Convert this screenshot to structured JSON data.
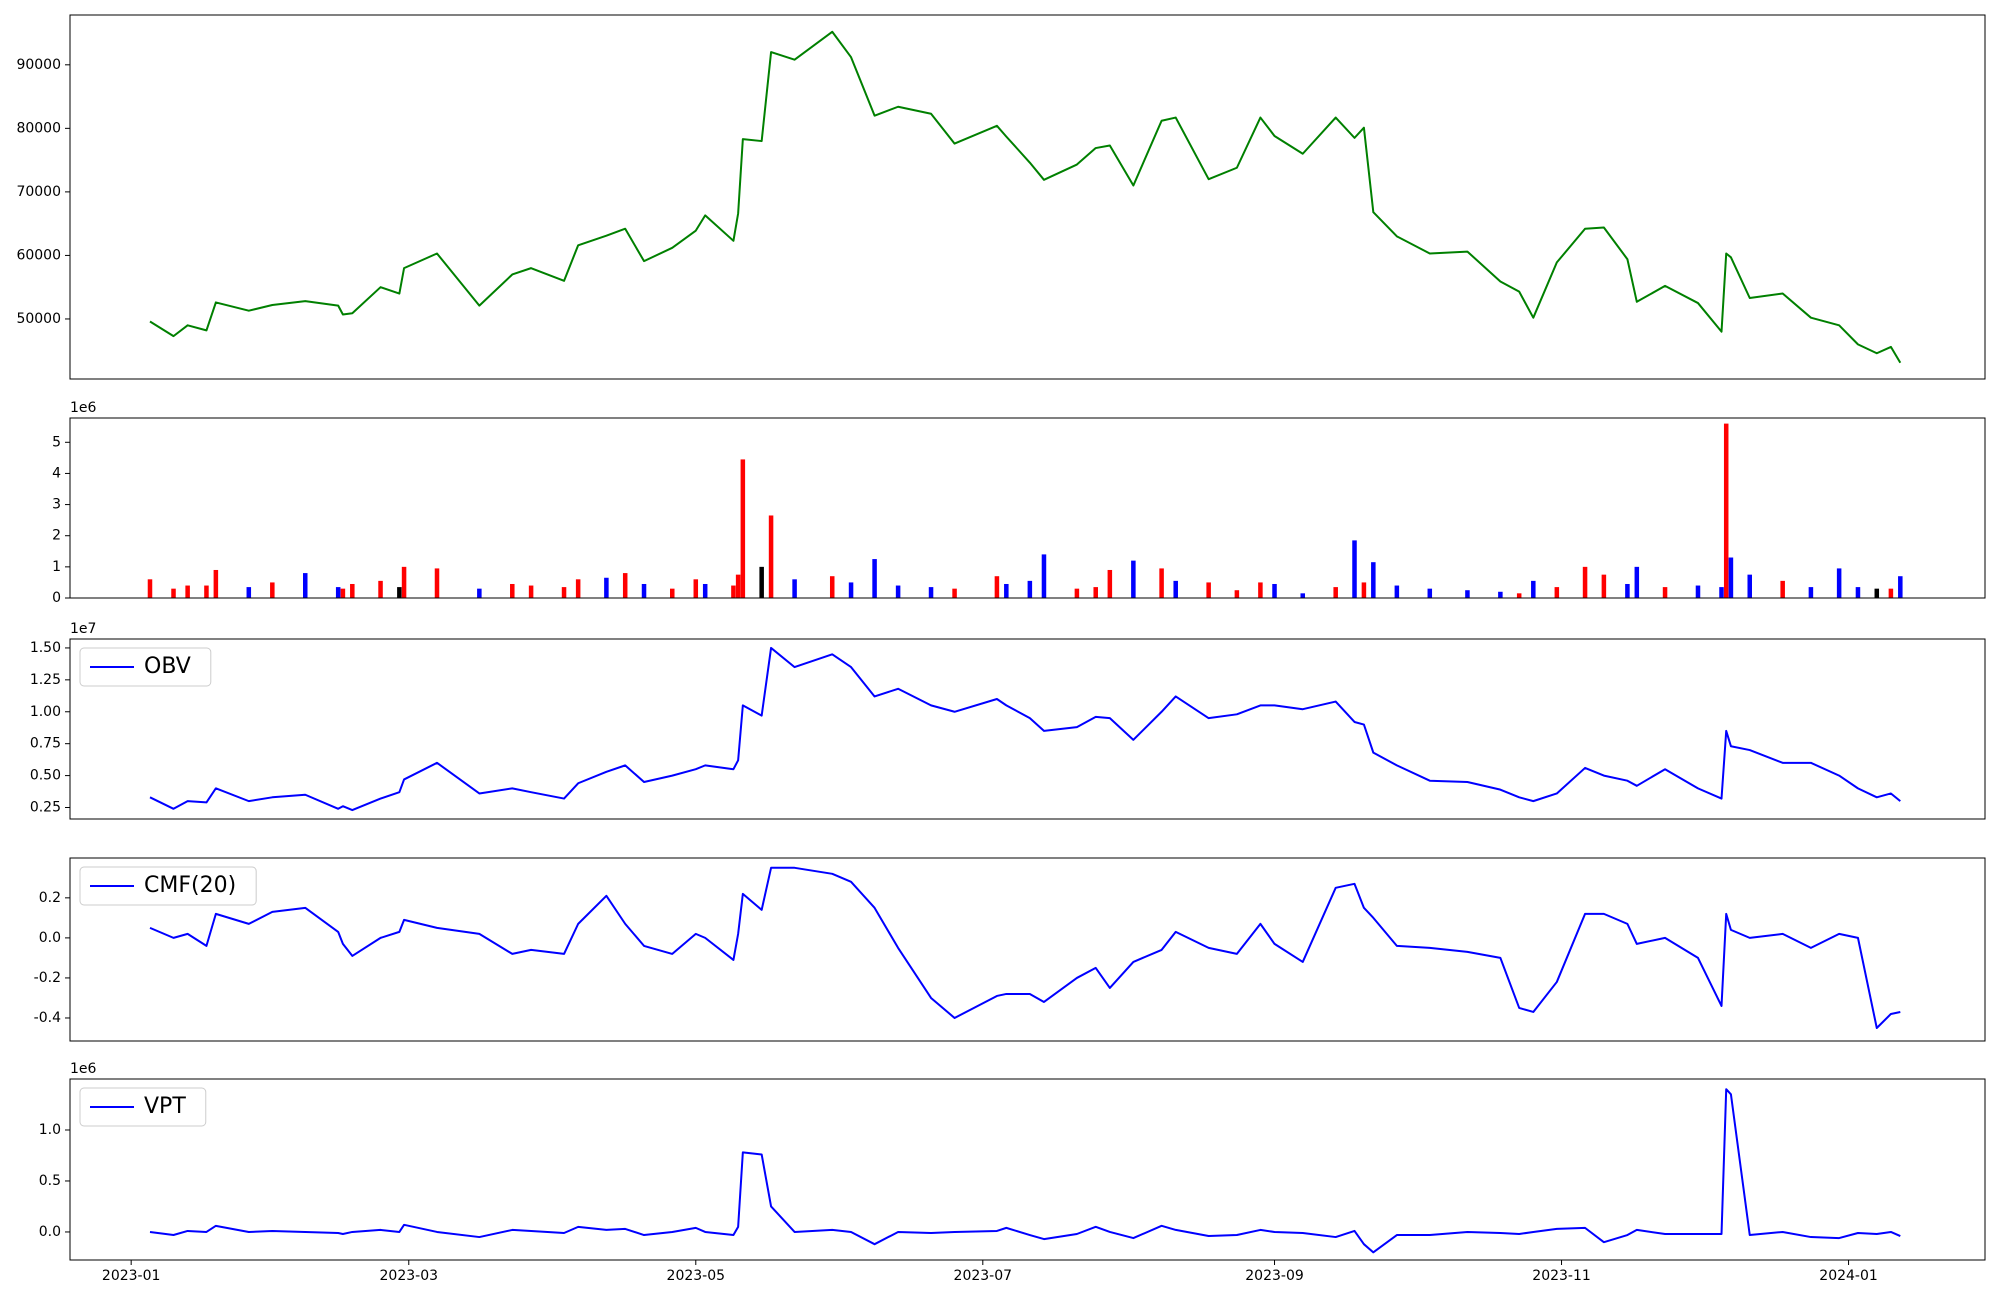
{
  "chart_data": [
    {
      "type": "line",
      "x": [
        "2023-01-05",
        "2023-01-10",
        "2023-01-13",
        "2023-01-17",
        "2023-01-19",
        "2023-01-26",
        "2023-01-31",
        "2023-02-07",
        "2023-02-14",
        "2023-02-15",
        "2023-02-17",
        "2023-02-23",
        "2023-02-27",
        "2023-02-28",
        "2023-03-07",
        "2023-03-16",
        "2023-03-23",
        "2023-03-27",
        "2023-04-03",
        "2023-04-06",
        "2023-04-12",
        "2023-04-16",
        "2023-04-20",
        "2023-04-26",
        "2023-05-01",
        "2023-05-03",
        "2023-05-09",
        "2023-05-10",
        "2023-05-11",
        "2023-05-15",
        "2023-05-17",
        "2023-05-22",
        "2023-05-30",
        "2023-06-03",
        "2023-06-08",
        "2023-06-13",
        "2023-06-20",
        "2023-06-25",
        "2023-07-04",
        "2023-07-06",
        "2023-07-11",
        "2023-07-14",
        "2023-07-21",
        "2023-07-25",
        "2023-07-28",
        "2023-08-02",
        "2023-08-08",
        "2023-08-11",
        "2023-08-18",
        "2023-08-24",
        "2023-08-29",
        "2023-09-01",
        "2023-09-07",
        "2023-09-14",
        "2023-09-18",
        "2023-09-20",
        "2023-09-22",
        "2023-09-27",
        "2023-10-04",
        "2023-10-12",
        "2023-10-19",
        "2023-10-23",
        "2023-10-26",
        "2023-10-31",
        "2023-11-06",
        "2023-11-10",
        "2023-11-15",
        "2023-11-17",
        "2023-11-23",
        "2023-11-30",
        "2023-12-05",
        "2023-12-06",
        "2023-12-07",
        "2023-12-11",
        "2023-12-18",
        "2023-12-24",
        "2023-12-30",
        "2024-01-03",
        "2024-01-07",
        "2024-01-10",
        "2024-01-12"
      ],
      "series": [
        {
          "color": "#008000",
          "values": [
            49600,
            47300,
            49000,
            48200,
            52600,
            51300,
            52200,
            52800,
            52100,
            50700,
            50900,
            55000,
            54000,
            58000,
            60300,
            52100,
            57000,
            58000,
            56000,
            61600,
            63100,
            64200,
            59100,
            61200,
            63900,
            66300,
            62300,
            66600,
            78300,
            78000,
            92000,
            90800,
            95200,
            91200,
            82000,
            83400,
            82300,
            77600,
            80400,
            78700,
            74600,
            71900,
            74300,
            76900,
            77300,
            71000,
            81200,
            81700,
            72000,
            73800,
            81700,
            78800,
            76000,
            81700,
            78500,
            80100,
            66800,
            63000,
            60300,
            60600,
            55900,
            54300,
            50200,
            58900,
            64200,
            64400,
            59400,
            52700,
            55200,
            52500,
            48000,
            60300,
            59700,
            53300,
            54000,
            50200,
            49000,
            46000,
            44600,
            45600,
            43100
          ]
        }
      ],
      "xlim": [
        "2022-12-19",
        "2024-01-30"
      ],
      "ylim": [
        40550,
        97840
      ],
      "yticks": [
        50000,
        60000,
        70000,
        80000,
        90000
      ]
    },
    {
      "type": "bar",
      "x": [
        "2023-01-05",
        "2023-01-10",
        "2023-01-13",
        "2023-01-17",
        "2023-01-19",
        "2023-01-26",
        "2023-01-31",
        "2023-02-07",
        "2023-02-14",
        "2023-02-15",
        "2023-02-17",
        "2023-02-23",
        "2023-02-27",
        "2023-02-28",
        "2023-03-07",
        "2023-03-16",
        "2023-03-23",
        "2023-03-27",
        "2023-04-03",
        "2023-04-06",
        "2023-04-12",
        "2023-04-16",
        "2023-04-20",
        "2023-04-26",
        "2023-05-01",
        "2023-05-03",
        "2023-05-09",
        "2023-05-10",
        "2023-05-11",
        "2023-05-15",
        "2023-05-17",
        "2023-05-22",
        "2023-05-30",
        "2023-06-03",
        "2023-06-08",
        "2023-06-13",
        "2023-06-20",
        "2023-06-25",
        "2023-07-04",
        "2023-07-06",
        "2023-07-11",
        "2023-07-14",
        "2023-07-21",
        "2023-07-25",
        "2023-07-28",
        "2023-08-02",
        "2023-08-08",
        "2023-08-11",
        "2023-08-18",
        "2023-08-24",
        "2023-08-29",
        "2023-09-01",
        "2023-09-07",
        "2023-09-14",
        "2023-09-18",
        "2023-09-20",
        "2023-09-22",
        "2023-09-27",
        "2023-10-04",
        "2023-10-12",
        "2023-10-19",
        "2023-10-23",
        "2023-10-26",
        "2023-10-31",
        "2023-11-06",
        "2023-11-10",
        "2023-11-15",
        "2023-11-17",
        "2023-11-23",
        "2023-11-30",
        "2023-12-05",
        "2023-12-06",
        "2023-12-07",
        "2023-12-11",
        "2023-12-18",
        "2023-12-24",
        "2023-12-30",
        "2024-01-03",
        "2024-01-07",
        "2024-01-10",
        "2024-01-12"
      ],
      "values": [
        0.6,
        0.3,
        0.4,
        0.4,
        0.9,
        0.35,
        0.5,
        0.8,
        0.35,
        0.3,
        0.45,
        0.55,
        0.35,
        1.0,
        0.95,
        0.3,
        0.45,
        0.4,
        0.35,
        0.6,
        0.65,
        0.8,
        0.45,
        0.3,
        0.6,
        0.45,
        0.4,
        0.75,
        4.45,
        1.0,
        2.65,
        0.6,
        0.7,
        0.5,
        1.25,
        0.4,
        0.35,
        0.3,
        0.7,
        0.45,
        0.55,
        1.4,
        0.3,
        0.35,
        0.9,
        1.2,
        0.95,
        0.55,
        0.5,
        0.25,
        0.5,
        0.45,
        0.15,
        0.35,
        1.85,
        0.5,
        1.15,
        0.4,
        0.3,
        0.25,
        0.2,
        0.15,
        0.55,
        0.35,
        1.0,
        0.75,
        0.45,
        1.0,
        0.35,
        0.4,
        0.35,
        5.6,
        1.3,
        0.75,
        0.55,
        0.35,
        0.95,
        0.35,
        0.3,
        0.3,
        0.7
      ],
      "colors": [
        "red",
        "red",
        "red",
        "red",
        "red",
        "blue",
        "red",
        "blue",
        "blue",
        "red",
        "red",
        "red",
        "black",
        "red",
        "red",
        "blue",
        "red",
        "red",
        "red",
        "red",
        "blue",
        "red",
        "blue",
        "red",
        "red",
        "blue",
        "red",
        "red",
        "red",
        "black",
        "red",
        "blue",
        "red",
        "blue",
        "blue",
        "blue",
        "blue",
        "red",
        "red",
        "blue",
        "blue",
        "blue",
        "red",
        "red",
        "red",
        "blue",
        "red",
        "blue",
        "red",
        "red",
        "red",
        "blue",
        "blue",
        "red",
        "blue",
        "red",
        "blue",
        "blue",
        "blue",
        "blue",
        "blue",
        "red",
        "blue",
        "red",
        "red",
        "red",
        "blue",
        "blue",
        "red",
        "blue",
        "blue",
        "red",
        "blue",
        "blue",
        "red",
        "blue",
        "blue",
        "blue",
        "black",
        "red",
        "blue"
      ],
      "offset_label": "1e6",
      "xlim": [
        "2022-12-19",
        "2024-01-30"
      ],
      "ylim": [
        0,
        5.78
      ],
      "yticks": [
        0,
        1,
        2,
        3,
        4,
        5
      ]
    },
    {
      "type": "line",
      "x": [
        "2023-01-05",
        "2023-01-10",
        "2023-01-13",
        "2023-01-17",
        "2023-01-19",
        "2023-01-26",
        "2023-01-31",
        "2023-02-07",
        "2023-02-14",
        "2023-02-15",
        "2023-02-17",
        "2023-02-23",
        "2023-02-27",
        "2023-02-28",
        "2023-03-07",
        "2023-03-16",
        "2023-03-23",
        "2023-03-27",
        "2023-04-03",
        "2023-04-06",
        "2023-04-12",
        "2023-04-16",
        "2023-04-20",
        "2023-04-26",
        "2023-05-01",
        "2023-05-03",
        "2023-05-09",
        "2023-05-10",
        "2023-05-11",
        "2023-05-15",
        "2023-05-17",
        "2023-05-22",
        "2023-05-30",
        "2023-06-03",
        "2023-06-08",
        "2023-06-13",
        "2023-06-20",
        "2023-06-25",
        "2023-07-04",
        "2023-07-06",
        "2023-07-11",
        "2023-07-14",
        "2023-07-21",
        "2023-07-25",
        "2023-07-28",
        "2023-08-02",
        "2023-08-08",
        "2023-08-11",
        "2023-08-18",
        "2023-08-24",
        "2023-08-29",
        "2023-09-01",
        "2023-09-07",
        "2023-09-14",
        "2023-09-18",
        "2023-09-20",
        "2023-09-22",
        "2023-09-27",
        "2023-10-04",
        "2023-10-12",
        "2023-10-19",
        "2023-10-23",
        "2023-10-26",
        "2023-10-31",
        "2023-11-06",
        "2023-11-10",
        "2023-11-15",
        "2023-11-17",
        "2023-11-23",
        "2023-11-30",
        "2023-12-05",
        "2023-12-06",
        "2023-12-07",
        "2023-12-11",
        "2023-12-18",
        "2023-12-24",
        "2023-12-30",
        "2024-01-03",
        "2024-01-07",
        "2024-01-10",
        "2024-01-12"
      ],
      "series": [
        {
          "name": "OBV",
          "color": "#0000ff",
          "values": [
            0.33,
            0.24,
            0.3,
            0.29,
            0.4,
            0.3,
            0.33,
            0.35,
            0.24,
            0.26,
            0.23,
            0.32,
            0.37,
            0.47,
            0.6,
            0.36,
            0.4,
            0.37,
            0.32,
            0.44,
            0.53,
            0.58,
            0.45,
            0.5,
            0.55,
            0.58,
            0.55,
            0.62,
            1.05,
            0.97,
            1.5,
            1.35,
            1.45,
            1.35,
            1.12,
            1.18,
            1.05,
            1.0,
            1.1,
            1.05,
            0.95,
            0.85,
            0.88,
            0.96,
            0.95,
            0.78,
            1.0,
            1.12,
            0.95,
            0.98,
            1.05,
            1.05,
            1.02,
            1.08,
            0.92,
            0.9,
            0.68,
            0.58,
            0.46,
            0.45,
            0.39,
            0.33,
            0.3,
            0.36,
            0.56,
            0.5,
            0.46,
            0.42,
            0.55,
            0.4,
            0.32,
            0.85,
            0.73,
            0.7,
            0.6,
            0.6,
            0.5,
            0.4,
            0.33,
            0.36,
            0.3
          ]
        }
      ],
      "legend": "upper left",
      "offset_label": "1e7",
      "xlim": [
        "2022-12-19",
        "2024-01-30"
      ],
      "ylim": [
        0.16,
        1.57
      ],
      "yticks": [
        0.25,
        {
          "value": 0.5,
          "label": "0.50"
        },
        0.75,
        {
          "value": 1,
          "label": "1.00"
        },
        1.25,
        {
          "value": 1.5,
          "label": "1.50"
        }
      ]
    },
    {
      "type": "line",
      "x": [
        "2023-01-05",
        "2023-01-10",
        "2023-01-13",
        "2023-01-17",
        "2023-01-19",
        "2023-01-26",
        "2023-01-31",
        "2023-02-07",
        "2023-02-14",
        "2023-02-15",
        "2023-02-17",
        "2023-02-23",
        "2023-02-27",
        "2023-02-28",
        "2023-03-07",
        "2023-03-16",
        "2023-03-23",
        "2023-03-27",
        "2023-04-03",
        "2023-04-06",
        "2023-04-12",
        "2023-04-16",
        "2023-04-20",
        "2023-04-26",
        "2023-05-01",
        "2023-05-03",
        "2023-05-09",
        "2023-05-10",
        "2023-05-11",
        "2023-05-15",
        "2023-05-17",
        "2023-05-22",
        "2023-05-30",
        "2023-06-03",
        "2023-06-08",
        "2023-06-13",
        "2023-06-20",
        "2023-06-25",
        "2023-07-04",
        "2023-07-06",
        "2023-07-11",
        "2023-07-14",
        "2023-07-21",
        "2023-07-25",
        "2023-07-28",
        "2023-08-02",
        "2023-08-08",
        "2023-08-11",
        "2023-08-18",
        "2023-08-24",
        "2023-08-29",
        "2023-09-01",
        "2023-09-07",
        "2023-09-14",
        "2023-09-18",
        "2023-09-20",
        "2023-09-22",
        "2023-09-27",
        "2023-10-04",
        "2023-10-12",
        "2023-10-19",
        "2023-10-23",
        "2023-10-26",
        "2023-10-31",
        "2023-11-06",
        "2023-11-10",
        "2023-11-15",
        "2023-11-17",
        "2023-11-23",
        "2023-11-30",
        "2023-12-05",
        "2023-12-06",
        "2023-12-07",
        "2023-12-11",
        "2023-12-18",
        "2023-12-24",
        "2023-12-30",
        "2024-01-03",
        "2024-01-07",
        "2024-01-10",
        "2024-01-12"
      ],
      "series": [
        {
          "name": "CMF(20)",
          "color": "#0000ff",
          "values": [
            0.05,
            0,
            0.02,
            -0.04,
            0.12,
            0.07,
            0.13,
            0.15,
            0.03,
            -0.03,
            -0.09,
            0,
            0.03,
            0.09,
            0.05,
            0.02,
            -0.08,
            -0.06,
            -0.08,
            0.07,
            0.21,
            0.07,
            -0.04,
            -0.08,
            0.02,
            0,
            -0.11,
            0.02,
            0.22,
            0.14,
            0.35,
            0.35,
            0.32,
            0.28,
            0.15,
            -0.05,
            -0.3,
            -0.4,
            -0.29,
            -0.28,
            -0.28,
            -0.32,
            -0.2,
            -0.15,
            -0.25,
            -0.12,
            -0.06,
            0.03,
            -0.05,
            -0.08,
            0.07,
            -0.03,
            -0.12,
            0.25,
            0.27,
            0.15,
            0.1,
            -0.04,
            -0.05,
            -0.07,
            -0.1,
            -0.35,
            -0.37,
            -0.22,
            0.12,
            0.12,
            0.07,
            -0.03,
            0,
            -0.1,
            -0.34,
            0.12,
            0.04,
            0,
            0.02,
            -0.05,
            0.02,
            0,
            -0.45,
            -0.38,
            -0.37
          ]
        }
      ],
      "legend": "upper left",
      "xlim": [
        "2022-12-19",
        "2024-01-30"
      ],
      "ylim": [
        -0.515,
        0.399
      ],
      "yticks": [
        -0.4,
        -0.2,
        {
          "value": 0,
          "label": "0.0"
        },
        0.2
      ]
    },
    {
      "type": "line",
      "x": [
        "2023-01-05",
        "2023-01-10",
        "2023-01-13",
        "2023-01-17",
        "2023-01-19",
        "2023-01-26",
        "2023-01-31",
        "2023-02-07",
        "2023-02-14",
        "2023-02-15",
        "2023-02-17",
        "2023-02-23",
        "2023-02-27",
        "2023-02-28",
        "2023-03-07",
        "2023-03-16",
        "2023-03-23",
        "2023-03-27",
        "2023-04-03",
        "2023-04-06",
        "2023-04-12",
        "2023-04-16",
        "2023-04-20",
        "2023-04-26",
        "2023-05-01",
        "2023-05-03",
        "2023-05-09",
        "2023-05-10",
        "2023-05-11",
        "2023-05-15",
        "2023-05-17",
        "2023-05-22",
        "2023-05-30",
        "2023-06-03",
        "2023-06-08",
        "2023-06-13",
        "2023-06-20",
        "2023-06-25",
        "2023-07-04",
        "2023-07-06",
        "2023-07-11",
        "2023-07-14",
        "2023-07-21",
        "2023-07-25",
        "2023-07-28",
        "2023-08-02",
        "2023-08-08",
        "2023-08-11",
        "2023-08-18",
        "2023-08-24",
        "2023-08-29",
        "2023-09-01",
        "2023-09-07",
        "2023-09-14",
        "2023-09-18",
        "2023-09-20",
        "2023-09-22",
        "2023-09-27",
        "2023-10-04",
        "2023-10-12",
        "2023-10-19",
        "2023-10-23",
        "2023-10-26",
        "2023-10-31",
        "2023-11-06",
        "2023-11-10",
        "2023-11-15",
        "2023-11-17",
        "2023-11-23",
        "2023-11-30",
        "2023-12-05",
        "2023-12-06",
        "2023-12-07",
        "2023-12-11",
        "2023-12-18",
        "2023-12-24",
        "2023-12-30",
        "2024-01-03",
        "2024-01-07",
        "2024-01-10",
        "2024-01-12"
      ],
      "series": [
        {
          "name": "VPT",
          "color": "#0000ff",
          "values": [
            0,
            -0.03,
            0.01,
            0,
            0.06,
            0,
            0.01,
            0,
            -0.01,
            -0.02,
            0,
            0.02,
            0,
            0.07,
            0,
            -0.05,
            0.02,
            0.01,
            -0.01,
            0.05,
            0.02,
            0.03,
            -0.03,
            0,
            0.04,
            0,
            -0.03,
            0.05,
            0.78,
            0.76,
            0.25,
            0,
            0.02,
            0,
            -0.12,
            0,
            -0.01,
            0,
            0.01,
            0.04,
            -0.03,
            -0.07,
            -0.02,
            0.05,
            0,
            -0.06,
            0.06,
            0.02,
            -0.04,
            -0.03,
            0.02,
            0,
            -0.01,
            -0.05,
            0.01,
            -0.12,
            -0.2,
            -0.03,
            -0.03,
            0,
            -0.01,
            -0.02,
            0,
            0.03,
            0.04,
            -0.1,
            -0.03,
            0.02,
            -0.02,
            -0.02,
            -0.02,
            1.4,
            1.35,
            -0.03,
            0,
            -0.05,
            -0.06,
            -0.01,
            -0.02,
            0,
            -0.04
          ]
        }
      ],
      "legend": "upper left",
      "offset_label": "1e6",
      "xlim": [
        "2022-12-19",
        "2024-01-30"
      ],
      "ylim": [
        -0.275,
        1.5
      ],
      "yticks": [
        {
          "value": 0,
          "label": "0.0"
        },
        0.5,
        {
          "value": 1,
          "label": "1.0"
        }
      ],
      "xticks": [
        "2023-01",
        "2023-03",
        "2023-05",
        "2023-07",
        "2023-09",
        "2023-11",
        "2024-01"
      ]
    }
  ]
}
